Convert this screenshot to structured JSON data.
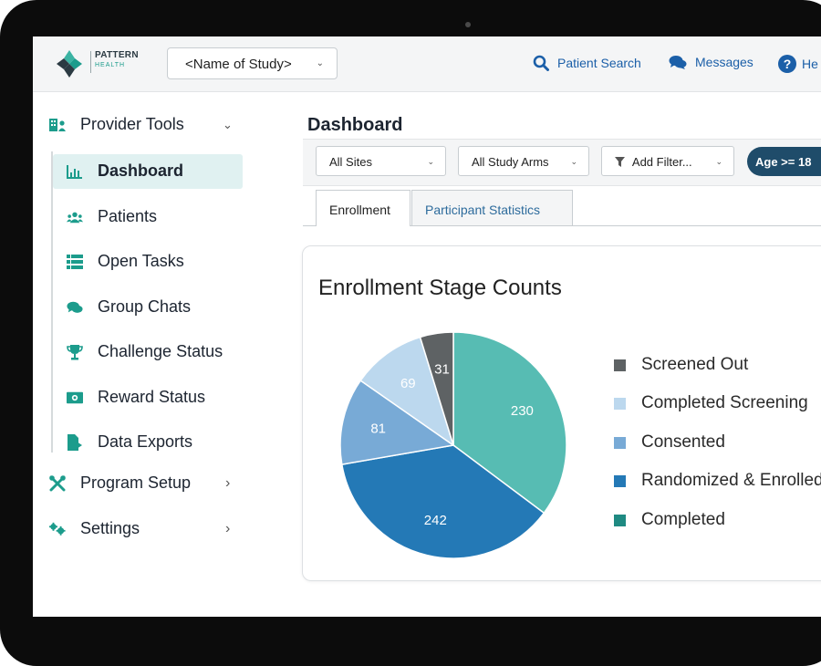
{
  "brand": {
    "line1": "PATTERN",
    "line2": "HEALTH"
  },
  "study_select": {
    "value": "<Name of Study>"
  },
  "top_links": [
    {
      "label": "Patient Search",
      "icon": "search-icon"
    },
    {
      "label": "Messages",
      "icon": "chat-bubbles-icon"
    },
    {
      "label": "He",
      "icon": "help-icon"
    }
  ],
  "sidebar": {
    "section1": {
      "label": "Provider Tools",
      "icon": "provider-tools-icon",
      "expanded": true
    },
    "items": [
      {
        "label": "Dashboard",
        "icon": "bar-chart-icon",
        "active": true
      },
      {
        "label": "Patients",
        "icon": "users-icon"
      },
      {
        "label": "Open Tasks",
        "icon": "task-list-icon"
      },
      {
        "label": "Group Chats",
        "icon": "chat-bubbles-icon"
      },
      {
        "label": "Challenge Status",
        "icon": "trophy-icon"
      },
      {
        "label": "Reward Status",
        "icon": "money-icon"
      },
      {
        "label": "Data Exports",
        "icon": "file-export-icon"
      }
    ],
    "section2": {
      "label": "Program Setup",
      "icon": "tools-icon"
    },
    "section3": {
      "label": "Settings",
      "icon": "gears-icon"
    }
  },
  "main": {
    "title": "Dashboard",
    "filters": {
      "sites": "All Sites",
      "arms": "All Study Arms",
      "add_filter": "Add Filter...",
      "age_pill": "Age >= 18"
    },
    "tabs": [
      {
        "label": "Enrollment",
        "active": true
      },
      {
        "label": "Participant Statistics",
        "active": false
      }
    ]
  },
  "chart_data": {
    "type": "pie",
    "title": "Enrollment Stage Counts",
    "slices": [
      {
        "label": "Completed",
        "value": 230,
        "color": "#57bcb3"
      },
      {
        "label": "Randomized & Enrolled",
        "value": 242,
        "color": "#2479b6"
      },
      {
        "label": "Consented",
        "value": 81,
        "color": "#78aad6"
      },
      {
        "label": "Completed Screening",
        "value": 69,
        "color": "#bcd8ee"
      },
      {
        "label": "Screened Out",
        "value": 31,
        "color": "#5e6264"
      }
    ],
    "legend": [
      {
        "label": "Screened Out",
        "color": "#5e6264"
      },
      {
        "label": "Completed Screening",
        "color": "#bcd8ee"
      },
      {
        "label": "Consented",
        "color": "#78aad6"
      },
      {
        "label": "Randomized & Enrolled",
        "color": "#2479b6"
      },
      {
        "label": "Completed",
        "color": "#1f8a82"
      }
    ],
    "legend_placement": "right"
  }
}
